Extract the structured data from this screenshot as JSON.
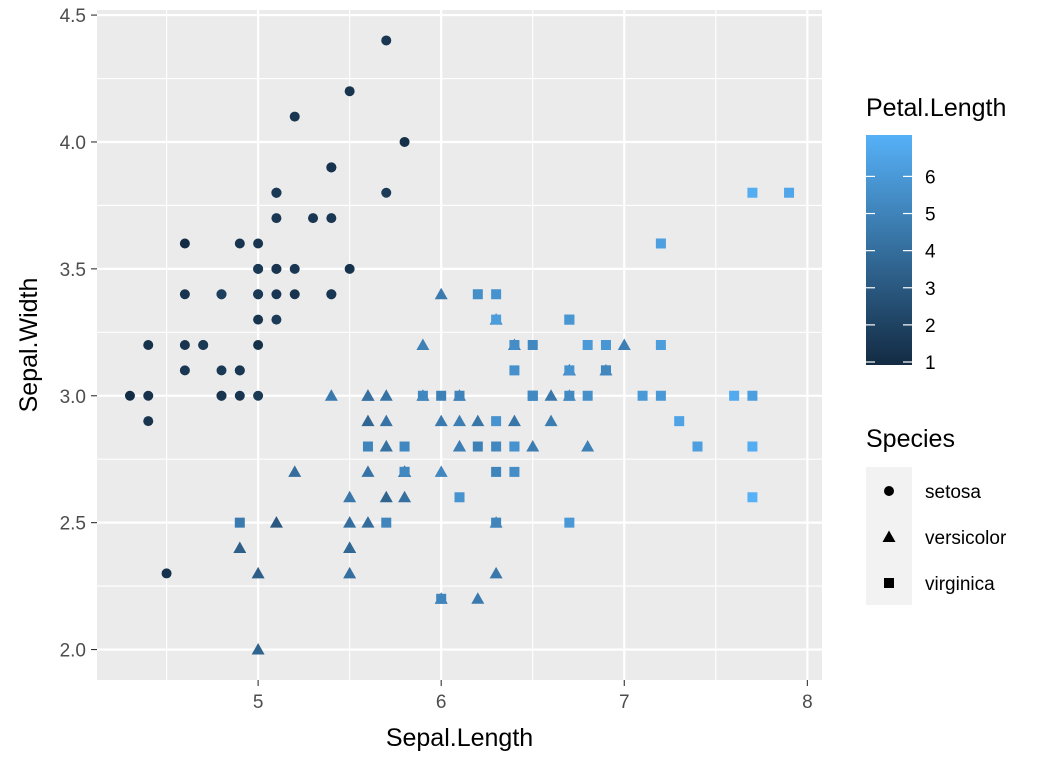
{
  "chart_data": {
    "type": "scatter",
    "xlabel": "Sepal.Length",
    "ylabel": "Sepal.Width",
    "xlim": [
      4.12,
      8.08
    ],
    "ylim": [
      1.88,
      4.52
    ],
    "x_ticks": [
      5,
      6,
      7,
      8
    ],
    "x_tick_labels": [
      "5",
      "6",
      "7",
      "8"
    ],
    "y_ticks": [
      2.0,
      2.5,
      3.0,
      3.5,
      4.0,
      4.5
    ],
    "y_tick_labels": [
      "2.0",
      "2.5",
      "3.0",
      "3.5",
      "4.0",
      "4.5"
    ],
    "grid": true,
    "panel_background": "#ebebeb",
    "grid_color": "#ffffff",
    "legend_position": "right",
    "color_legend": {
      "title": "Petal.Length",
      "range": [
        1,
        6.9
      ],
      "ticks": [
        1,
        2,
        3,
        4,
        5,
        6
      ],
      "tick_labels": [
        "1",
        "2",
        "3",
        "4",
        "5",
        "6"
      ],
      "low_color": "#132b43",
      "high_color": "#56b1f7"
    },
    "shape_legend": {
      "title": "Species",
      "entries": [
        {
          "label": "setosa",
          "shape": "circle"
        },
        {
          "label": "versicolor",
          "shape": "triangle"
        },
        {
          "label": "virginica",
          "shape": "square"
        }
      ]
    },
    "series": [
      {
        "name": "setosa",
        "shape": "circle",
        "points": [
          [
            5.1,
            3.5,
            1.4
          ],
          [
            4.9,
            3.0,
            1.4
          ],
          [
            4.7,
            3.2,
            1.3
          ],
          [
            4.6,
            3.1,
            1.5
          ],
          [
            5.0,
            3.6,
            1.4
          ],
          [
            5.4,
            3.9,
            1.7
          ],
          [
            4.6,
            3.4,
            1.4
          ],
          [
            5.0,
            3.4,
            1.5
          ],
          [
            4.4,
            2.9,
            1.4
          ],
          [
            4.9,
            3.1,
            1.5
          ],
          [
            5.4,
            3.7,
            1.5
          ],
          [
            4.8,
            3.4,
            1.6
          ],
          [
            4.8,
            3.0,
            1.4
          ],
          [
            4.3,
            3.0,
            1.1
          ],
          [
            5.8,
            4.0,
            1.2
          ],
          [
            5.7,
            4.4,
            1.5
          ],
          [
            5.4,
            3.9,
            1.3
          ],
          [
            5.1,
            3.5,
            1.4
          ],
          [
            5.7,
            3.8,
            1.7
          ],
          [
            5.1,
            3.8,
            1.5
          ],
          [
            5.4,
            3.4,
            1.7
          ],
          [
            5.1,
            3.7,
            1.5
          ],
          [
            4.6,
            3.6,
            1.0
          ],
          [
            5.1,
            3.3,
            1.7
          ],
          [
            4.8,
            3.4,
            1.9
          ],
          [
            5.0,
            3.0,
            1.6
          ],
          [
            5.0,
            3.4,
            1.6
          ],
          [
            5.2,
            3.5,
            1.5
          ],
          [
            5.2,
            3.4,
            1.4
          ],
          [
            4.7,
            3.2,
            1.6
          ],
          [
            4.8,
            3.1,
            1.6
          ],
          [
            5.4,
            3.4,
            1.5
          ],
          [
            5.2,
            4.1,
            1.5
          ],
          [
            5.5,
            4.2,
            1.4
          ],
          [
            4.9,
            3.1,
            1.5
          ],
          [
            5.0,
            3.2,
            1.2
          ],
          [
            5.5,
            3.5,
            1.3
          ],
          [
            4.9,
            3.6,
            1.4
          ],
          [
            4.4,
            3.0,
            1.3
          ],
          [
            5.1,
            3.4,
            1.5
          ],
          [
            5.0,
            3.5,
            1.3
          ],
          [
            4.5,
            2.3,
            1.3
          ],
          [
            4.4,
            3.2,
            1.3
          ],
          [
            5.0,
            3.5,
            1.6
          ],
          [
            5.1,
            3.8,
            1.9
          ],
          [
            4.8,
            3.0,
            1.4
          ],
          [
            5.1,
            3.8,
            1.6
          ],
          [
            4.6,
            3.2,
            1.4
          ],
          [
            5.3,
            3.7,
            1.5
          ],
          [
            5.0,
            3.3,
            1.4
          ]
        ]
      },
      {
        "name": "versicolor",
        "shape": "triangle",
        "points": [
          [
            7.0,
            3.2,
            4.7
          ],
          [
            6.4,
            3.2,
            4.5
          ],
          [
            6.9,
            3.1,
            4.9
          ],
          [
            5.5,
            2.3,
            4.0
          ],
          [
            6.5,
            2.8,
            4.6
          ],
          [
            5.7,
            2.8,
            4.5
          ],
          [
            6.3,
            3.3,
            4.7
          ],
          [
            4.9,
            2.4,
            3.3
          ],
          [
            6.6,
            2.9,
            4.6
          ],
          [
            5.2,
            2.7,
            3.9
          ],
          [
            5.0,
            2.0,
            3.5
          ],
          [
            5.9,
            3.0,
            4.2
          ],
          [
            6.0,
            2.2,
            4.0
          ],
          [
            6.1,
            2.9,
            4.7
          ],
          [
            5.6,
            2.9,
            3.6
          ],
          [
            6.7,
            3.1,
            4.4
          ],
          [
            5.6,
            3.0,
            4.5
          ],
          [
            5.8,
            2.7,
            4.1
          ],
          [
            6.2,
            2.2,
            4.5
          ],
          [
            5.6,
            2.5,
            3.9
          ],
          [
            5.9,
            3.2,
            4.8
          ],
          [
            6.1,
            2.8,
            4.0
          ],
          [
            6.3,
            2.5,
            4.9
          ],
          [
            6.1,
            2.8,
            4.7
          ],
          [
            6.4,
            2.9,
            4.3
          ],
          [
            6.6,
            3.0,
            4.4
          ],
          [
            6.8,
            2.8,
            4.8
          ],
          [
            6.7,
            3.0,
            5.0
          ],
          [
            6.0,
            2.9,
            4.5
          ],
          [
            5.7,
            2.6,
            3.5
          ],
          [
            5.5,
            2.4,
            3.8
          ],
          [
            5.5,
            2.4,
            3.7
          ],
          [
            5.8,
            2.7,
            3.9
          ],
          [
            6.0,
            2.7,
            5.1
          ],
          [
            5.4,
            3.0,
            4.5
          ],
          [
            6.0,
            3.4,
            4.5
          ],
          [
            6.7,
            3.1,
            4.7
          ],
          [
            6.3,
            2.3,
            4.4
          ],
          [
            5.6,
            3.0,
            4.1
          ],
          [
            5.5,
            2.5,
            4.0
          ],
          [
            5.5,
            2.6,
            4.4
          ],
          [
            6.1,
            3.0,
            4.6
          ],
          [
            5.8,
            2.6,
            4.0
          ],
          [
            5.0,
            2.3,
            3.3
          ],
          [
            5.6,
            2.7,
            4.2
          ],
          [
            5.7,
            3.0,
            4.2
          ],
          [
            5.7,
            2.9,
            4.2
          ],
          [
            6.2,
            2.9,
            4.3
          ],
          [
            5.1,
            2.5,
            3.0
          ],
          [
            5.7,
            2.8,
            4.1
          ]
        ]
      },
      {
        "name": "virginica",
        "shape": "square",
        "points": [
          [
            6.3,
            3.3,
            6.0
          ],
          [
            5.8,
            2.7,
            5.1
          ],
          [
            7.1,
            3.0,
            5.9
          ],
          [
            6.3,
            2.9,
            5.6
          ],
          [
            6.5,
            3.0,
            5.8
          ],
          [
            7.6,
            3.0,
            6.6
          ],
          [
            4.9,
            2.5,
            4.5
          ],
          [
            7.3,
            2.9,
            6.3
          ],
          [
            6.7,
            2.5,
            5.8
          ],
          [
            7.2,
            3.6,
            6.1
          ],
          [
            6.5,
            3.2,
            5.1
          ],
          [
            6.4,
            2.7,
            5.3
          ],
          [
            6.8,
            3.0,
            5.5
          ],
          [
            5.7,
            2.5,
            5.0
          ],
          [
            5.8,
            2.8,
            5.1
          ],
          [
            6.4,
            3.2,
            5.3
          ],
          [
            6.5,
            3.0,
            5.5
          ],
          [
            7.7,
            3.8,
            6.7
          ],
          [
            7.7,
            2.6,
            6.9
          ],
          [
            6.0,
            2.2,
            5.0
          ],
          [
            6.9,
            3.2,
            5.7
          ],
          [
            5.6,
            2.8,
            4.9
          ],
          [
            7.7,
            2.8,
            6.7
          ],
          [
            6.3,
            2.7,
            4.9
          ],
          [
            6.7,
            3.3,
            5.7
          ],
          [
            7.2,
            3.2,
            6.0
          ],
          [
            6.2,
            2.8,
            4.8
          ],
          [
            6.1,
            3.0,
            4.9
          ],
          [
            6.4,
            2.8,
            5.6
          ],
          [
            7.2,
            3.0,
            5.8
          ],
          [
            7.4,
            2.8,
            6.1
          ],
          [
            7.9,
            3.8,
            6.4
          ],
          [
            6.4,
            2.8,
            5.6
          ],
          [
            6.3,
            2.8,
            5.1
          ],
          [
            6.1,
            2.6,
            5.6
          ],
          [
            7.7,
            3.0,
            6.1
          ],
          [
            6.3,
            3.4,
            5.6
          ],
          [
            6.4,
            3.1,
            5.5
          ],
          [
            6.0,
            3.0,
            4.8
          ],
          [
            6.9,
            3.1,
            5.4
          ],
          [
            6.7,
            3.1,
            5.6
          ],
          [
            6.9,
            3.1,
            5.1
          ],
          [
            5.8,
            2.7,
            5.1
          ],
          [
            6.8,
            3.2,
            5.9
          ],
          [
            6.7,
            3.3,
            5.7
          ],
          [
            6.7,
            3.0,
            5.2
          ],
          [
            6.3,
            2.5,
            5.0
          ],
          [
            6.5,
            3.0,
            5.2
          ],
          [
            6.2,
            3.4,
            5.4
          ],
          [
            5.9,
            3.0,
            5.1
          ]
        ]
      }
    ]
  }
}
